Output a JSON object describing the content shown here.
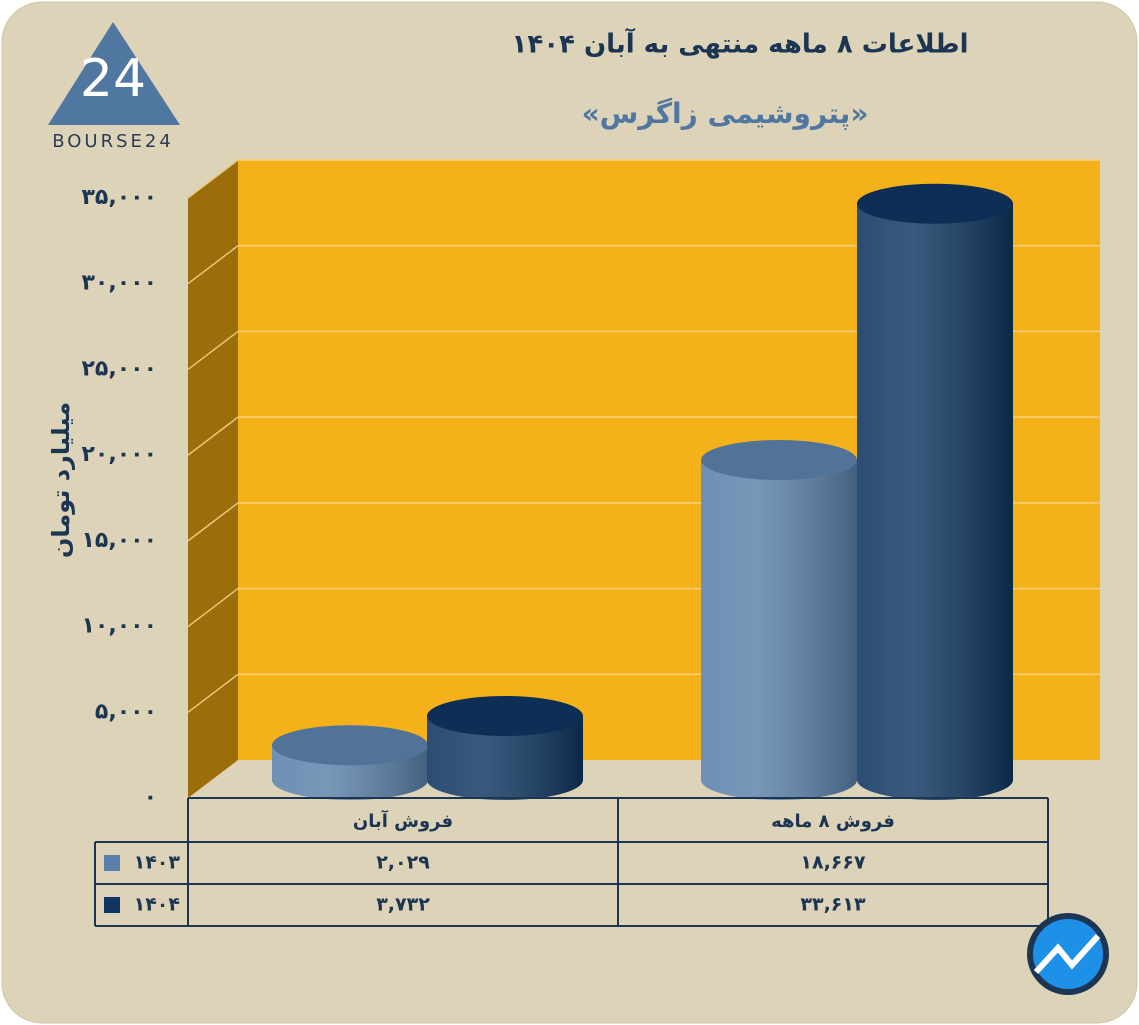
{
  "logo_text": "BOURSE24",
  "chart_data": {
    "type": "bar3d",
    "title": "اطلاعات ۸ ماهه منتهی به آبان ۱۴۰۴",
    "subtitle": "«پتروشیمی زاگرس»",
    "y_label": "میلیارد تومان",
    "categories": [
      "فروش آبان",
      "فروش ۸ ماهه"
    ],
    "series": [
      {
        "name": "۱۴۰۳",
        "color": "#5b80a9",
        "values": [
          2029,
          18667
        ],
        "value_labels": [
          "۲,۰۲۹",
          "۱۸,۶۶۷"
        ]
      },
      {
        "name": "۱۴۰۴",
        "color": "#0f3560",
        "values": [
          3732,
          33613
        ],
        "value_labels": [
          "۳,۷۳۲",
          "۳۳,۶۱۳"
        ]
      }
    ],
    "ylim": [
      0,
      35000
    ],
    "yticks": [
      {
        "value": 0,
        "label": "۰"
      },
      {
        "value": 5000,
        "label": "۵,۰۰۰"
      },
      {
        "value": 10000,
        "label": "۱۰,۰۰۰"
      },
      {
        "value": 15000,
        "label": "۱۵,۰۰۰"
      },
      {
        "value": 20000,
        "label": "۲۰,۰۰۰"
      },
      {
        "value": 25000,
        "label": "۲۵,۰۰۰"
      },
      {
        "value": 30000,
        "label": "۳۰,۰۰۰"
      },
      {
        "value": 35000,
        "label": "۳۵,۰۰۰"
      }
    ],
    "grid": true
  }
}
